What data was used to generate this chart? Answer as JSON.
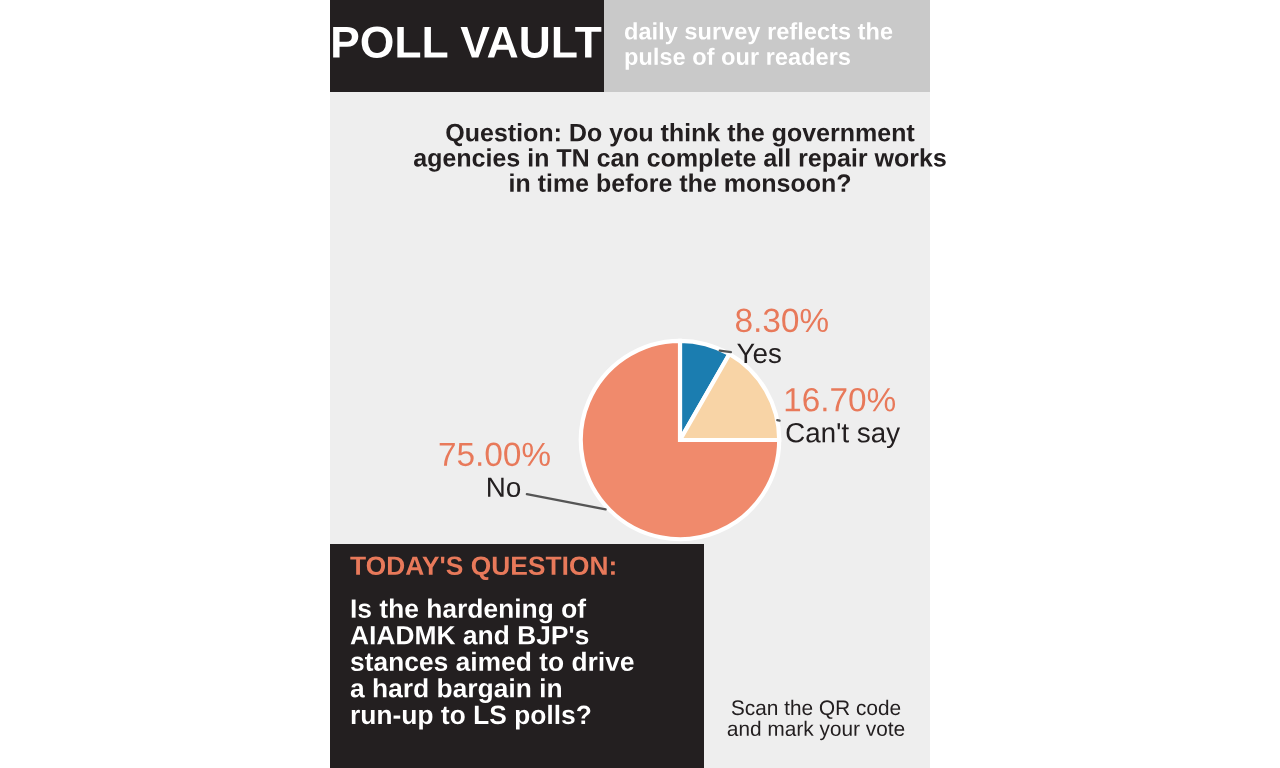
{
  "chart_data": {
    "type": "pie",
    "title": "POLL VAULT",
    "subtitle": "daily survey reflects the\npulse of our readers",
    "categories": [
      "Yes",
      "Can't say",
      "No"
    ],
    "values": [
      8.3,
      16.7,
      75.0
    ],
    "value_labels": [
      "8.30%",
      "16.70%",
      "75.00%"
    ],
    "colors": [
      "#1b7db0",
      "#f8d4a6",
      "#f08a6c"
    ],
    "annotations": [
      "Question: Do you think the government\nagencies in TN can complete all repair works\nin time before the monsoon?",
      "TODAY'S QUESTION:",
      "Is the hardening of\nAIADMK and BJP's\nstances aimed to drive\na hard bargain in\nrun-up to LS polls?",
      "Scan the QR code\nand mark your vote"
    ],
    "legend": false
  }
}
